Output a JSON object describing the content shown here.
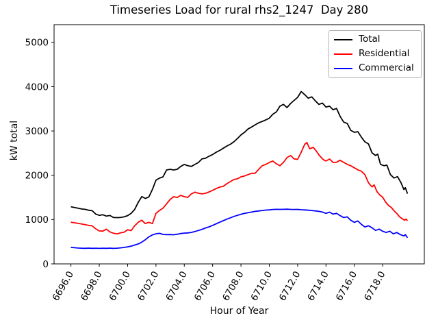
{
  "chart_data": {
    "type": "line",
    "title": "Timeseries Load for rural rhs2_1247  Day 280",
    "xlabel": "Hour of Year",
    "ylabel": "kW total",
    "xlim": [
      6694.81,
      6720.94
    ],
    "ylim": [
      0,
      5400
    ],
    "grid": false,
    "legend_position": "upper right",
    "x_tick_rotation_deg": 60,
    "xticks": [
      6696,
      6698,
      6700,
      6702,
      6704,
      6706,
      6708,
      6710,
      6712,
      6714,
      6716,
      6718
    ],
    "xtick_labels": [
      "6696.0",
      "6698.0",
      "6700.0",
      "6702.0",
      "6704.0",
      "6706.0",
      "6708.0",
      "6710.0",
      "6712.0",
      "6714.0",
      "6716.0",
      "6718.0"
    ],
    "yticks": [
      0,
      1000,
      2000,
      3000,
      4000,
      5000
    ],
    "ytick_labels": [
      "0",
      "1000",
      "2000",
      "3000",
      "4000",
      "5000"
    ],
    "series": [
      {
        "name": "Total",
        "color": "#000000",
        "points": [
          [
            6696.0,
            1290
          ],
          [
            6696.25,
            1272
          ],
          [
            6696.5,
            1258
          ],
          [
            6696.75,
            1240
          ],
          [
            6697.0,
            1232
          ],
          [
            6697.25,
            1212
          ],
          [
            6697.5,
            1200
          ],
          [
            6697.75,
            1125
          ],
          [
            6698.0,
            1095
          ],
          [
            6698.25,
            1110
          ],
          [
            6698.5,
            1078
          ],
          [
            6698.75,
            1092
          ],
          [
            6699.0,
            1048
          ],
          [
            6699.25,
            1045
          ],
          [
            6699.5,
            1048
          ],
          [
            6699.75,
            1062
          ],
          [
            6700.0,
            1090
          ],
          [
            6700.25,
            1140
          ],
          [
            6700.5,
            1230
          ],
          [
            6700.75,
            1390
          ],
          [
            6701.0,
            1520
          ],
          [
            6701.25,
            1477
          ],
          [
            6701.5,
            1510
          ],
          [
            6701.75,
            1680
          ],
          [
            6702.0,
            1890
          ],
          [
            6702.25,
            1935
          ],
          [
            6702.5,
            1965
          ],
          [
            6702.75,
            2120
          ],
          [
            6703.0,
            2136
          ],
          [
            6703.25,
            2120
          ],
          [
            6703.5,
            2136
          ],
          [
            6703.75,
            2200
          ],
          [
            6704.0,
            2245
          ],
          [
            6704.25,
            2215
          ],
          [
            6704.5,
            2200
          ],
          [
            6704.75,
            2245
          ],
          [
            6705.0,
            2290
          ],
          [
            6705.25,
            2370
          ],
          [
            6705.5,
            2385
          ],
          [
            6705.75,
            2430
          ],
          [
            6706.0,
            2470
          ],
          [
            6706.25,
            2520
          ],
          [
            6706.5,
            2560
          ],
          [
            6706.75,
            2610
          ],
          [
            6707.0,
            2660
          ],
          [
            6707.25,
            2700
          ],
          [
            6707.5,
            2755
          ],
          [
            6707.75,
            2830
          ],
          [
            6708.0,
            2910
          ],
          [
            6708.25,
            2970
          ],
          [
            6708.5,
            3045
          ],
          [
            6708.75,
            3090
          ],
          [
            6709.0,
            3140
          ],
          [
            6709.25,
            3185
          ],
          [
            6709.5,
            3215
          ],
          [
            6709.75,
            3250
          ],
          [
            6710.0,
            3290
          ],
          [
            6710.25,
            3380
          ],
          [
            6710.5,
            3430
          ],
          [
            6710.75,
            3560
          ],
          [
            6711.0,
            3600
          ],
          [
            6711.25,
            3530
          ],
          [
            6711.5,
            3620
          ],
          [
            6711.75,
            3690
          ],
          [
            6712.0,
            3760
          ],
          [
            6712.25,
            3890
          ],
          [
            6712.5,
            3820
          ],
          [
            6712.75,
            3740
          ],
          [
            6713.0,
            3770
          ],
          [
            6713.25,
            3680
          ],
          [
            6713.5,
            3600
          ],
          [
            6713.75,
            3630
          ],
          [
            6714.0,
            3540
          ],
          [
            6714.25,
            3560
          ],
          [
            6714.5,
            3480
          ],
          [
            6714.75,
            3510
          ],
          [
            6715.0,
            3330
          ],
          [
            6715.25,
            3200
          ],
          [
            6715.5,
            3170
          ],
          [
            6715.75,
            3015
          ],
          [
            6716.0,
            2970
          ],
          [
            6716.25,
            2985
          ],
          [
            6716.5,
            2860
          ],
          [
            6716.75,
            2755
          ],
          [
            6717.0,
            2707
          ],
          [
            6717.25,
            2507
          ],
          [
            6717.5,
            2446
          ],
          [
            6717.65,
            2477
          ],
          [
            6717.85,
            2246
          ],
          [
            6718.1,
            2215
          ],
          [
            6718.3,
            2230
          ],
          [
            6718.55,
            2015
          ],
          [
            6718.8,
            1938
          ],
          [
            6719.05,
            1969
          ],
          [
            6719.3,
            1831
          ],
          [
            6719.5,
            1677
          ],
          [
            6719.6,
            1720
          ],
          [
            6719.75,
            1585
          ]
        ]
      },
      {
        "name": "Residential",
        "color": "#ff0000",
        "points": [
          [
            6696.0,
            940
          ],
          [
            6696.25,
            928
          ],
          [
            6696.5,
            915
          ],
          [
            6696.75,
            900
          ],
          [
            6697.0,
            885
          ],
          [
            6697.25,
            870
          ],
          [
            6697.5,
            858
          ],
          [
            6697.75,
            790
          ],
          [
            6698.0,
            745
          ],
          [
            6698.25,
            740
          ],
          [
            6698.5,
            785
          ],
          [
            6698.75,
            723
          ],
          [
            6699.0,
            692
          ],
          [
            6699.25,
            677
          ],
          [
            6699.5,
            700
          ],
          [
            6699.75,
            715
          ],
          [
            6700.0,
            770
          ],
          [
            6700.25,
            750
          ],
          [
            6700.5,
            860
          ],
          [
            6700.75,
            940
          ],
          [
            6701.0,
            985
          ],
          [
            6701.25,
            910
          ],
          [
            6701.5,
            938
          ],
          [
            6701.75,
            910
          ],
          [
            6702.0,
            1140
          ],
          [
            6702.25,
            1205
          ],
          [
            6702.5,
            1260
          ],
          [
            6702.75,
            1355
          ],
          [
            6703.0,
            1455
          ],
          [
            6703.25,
            1517
          ],
          [
            6703.5,
            1500
          ],
          [
            6703.75,
            1548
          ],
          [
            6704.0,
            1517
          ],
          [
            6704.25,
            1502
          ],
          [
            6704.5,
            1580
          ],
          [
            6704.75,
            1620
          ],
          [
            6705.0,
            1594
          ],
          [
            6705.25,
            1580
          ],
          [
            6705.5,
            1594
          ],
          [
            6705.75,
            1625
          ],
          [
            6706.0,
            1660
          ],
          [
            6706.25,
            1700
          ],
          [
            6706.5,
            1733
          ],
          [
            6706.75,
            1750
          ],
          [
            6707.0,
            1811
          ],
          [
            6707.25,
            1857
          ],
          [
            6707.5,
            1904
          ],
          [
            6707.75,
            1920
          ],
          [
            6708.0,
            1965
          ],
          [
            6708.25,
            1985
          ],
          [
            6708.5,
            2015
          ],
          [
            6708.75,
            2045
          ],
          [
            6709.0,
            2045
          ],
          [
            6709.25,
            2135
          ],
          [
            6709.5,
            2215
          ],
          [
            6709.75,
            2245
          ],
          [
            6710.0,
            2290
          ],
          [
            6710.25,
            2322
          ],
          [
            6710.5,
            2260
          ],
          [
            6710.75,
            2215
          ],
          [
            6711.0,
            2290
          ],
          [
            6711.25,
            2400
          ],
          [
            6711.5,
            2446
          ],
          [
            6711.75,
            2370
          ],
          [
            6712.0,
            2360
          ],
          [
            6712.25,
            2520
          ],
          [
            6712.5,
            2700
          ],
          [
            6712.65,
            2740
          ],
          [
            6712.85,
            2600
          ],
          [
            6713.1,
            2630
          ],
          [
            6713.3,
            2555
          ],
          [
            6713.55,
            2440
          ],
          [
            6713.8,
            2355
          ],
          [
            6714.0,
            2322
          ],
          [
            6714.25,
            2368
          ],
          [
            6714.5,
            2290
          ],
          [
            6714.75,
            2295
          ],
          [
            6715.0,
            2340
          ],
          [
            6715.25,
            2292
          ],
          [
            6715.5,
            2246
          ],
          [
            6715.75,
            2215
          ],
          [
            6716.0,
            2169
          ],
          [
            6716.25,
            2123
          ],
          [
            6716.5,
            2092
          ],
          [
            6716.75,
            2015
          ],
          [
            6717.0,
            1831
          ],
          [
            6717.25,
            1738
          ],
          [
            6717.4,
            1784
          ],
          [
            6717.6,
            1631
          ],
          [
            6717.8,
            1554
          ],
          [
            6718.0,
            1507
          ],
          [
            6718.2,
            1400
          ],
          [
            6718.4,
            1323
          ],
          [
            6718.6,
            1277
          ],
          [
            6718.8,
            1200
          ],
          [
            6719.0,
            1138
          ],
          [
            6719.2,
            1062
          ],
          [
            6719.4,
            1015
          ],
          [
            6719.55,
            985
          ],
          [
            6719.65,
            1012
          ],
          [
            6719.75,
            975
          ]
        ]
      },
      {
        "name": "Commercial",
        "color": "#0000ff",
        "points": [
          [
            6696.0,
            375
          ],
          [
            6696.25,
            365
          ],
          [
            6696.5,
            358
          ],
          [
            6696.75,
            355
          ],
          [
            6697.0,
            352
          ],
          [
            6697.25,
            356
          ],
          [
            6697.5,
            352
          ],
          [
            6697.75,
            355
          ],
          [
            6698.0,
            350
          ],
          [
            6698.25,
            355
          ],
          [
            6698.5,
            352
          ],
          [
            6698.75,
            356
          ],
          [
            6699.0,
            350
          ],
          [
            6699.25,
            355
          ],
          [
            6699.5,
            362
          ],
          [
            6699.75,
            372
          ],
          [
            6700.0,
            385
          ],
          [
            6700.25,
            400
          ],
          [
            6700.5,
            425
          ],
          [
            6700.75,
            450
          ],
          [
            6701.0,
            490
          ],
          [
            6701.25,
            545
          ],
          [
            6701.5,
            610
          ],
          [
            6701.75,
            655
          ],
          [
            6702.0,
            680
          ],
          [
            6702.25,
            690
          ],
          [
            6702.5,
            665
          ],
          [
            6702.75,
            660
          ],
          [
            6703.0,
            662
          ],
          [
            6703.25,
            658
          ],
          [
            6703.5,
            670
          ],
          [
            6703.75,
            685
          ],
          [
            6704.0,
            695
          ],
          [
            6704.25,
            700
          ],
          [
            6704.5,
            710
          ],
          [
            6704.75,
            730
          ],
          [
            6705.0,
            755
          ],
          [
            6705.25,
            780
          ],
          [
            6705.5,
            810
          ],
          [
            6705.75,
            835
          ],
          [
            6706.0,
            870
          ],
          [
            6706.25,
            905
          ],
          [
            6706.5,
            940
          ],
          [
            6706.75,
            975
          ],
          [
            6707.0,
            1010
          ],
          [
            6707.25,
            1040
          ],
          [
            6707.5,
            1070
          ],
          [
            6707.75,
            1095
          ],
          [
            6708.0,
            1120
          ],
          [
            6708.25,
            1140
          ],
          [
            6708.5,
            1155
          ],
          [
            6708.75,
            1170
          ],
          [
            6709.0,
            1185
          ],
          [
            6709.25,
            1195
          ],
          [
            6709.5,
            1205
          ],
          [
            6709.75,
            1215
          ],
          [
            6710.0,
            1220
          ],
          [
            6710.25,
            1228
          ],
          [
            6710.5,
            1232
          ],
          [
            6710.75,
            1230
          ],
          [
            6711.0,
            1232
          ],
          [
            6711.25,
            1235
          ],
          [
            6711.5,
            1230
          ],
          [
            6711.75,
            1228
          ],
          [
            6712.0,
            1230
          ],
          [
            6712.25,
            1222
          ],
          [
            6712.5,
            1218
          ],
          [
            6712.75,
            1212
          ],
          [
            6713.0,
            1205
          ],
          [
            6713.25,
            1196
          ],
          [
            6713.5,
            1185
          ],
          [
            6713.75,
            1170
          ],
          [
            6714.0,
            1140
          ],
          [
            6714.25,
            1168
          ],
          [
            6714.5,
            1123
          ],
          [
            6714.75,
            1140
          ],
          [
            6715.0,
            1090
          ],
          [
            6715.25,
            1046
          ],
          [
            6715.5,
            1062
          ],
          [
            6715.75,
            985
          ],
          [
            6716.0,
            938
          ],
          [
            6716.25,
            968
          ],
          [
            6716.5,
            892
          ],
          [
            6716.75,
            832
          ],
          [
            6717.0,
            860
          ],
          [
            6717.25,
            815
          ],
          [
            6717.5,
            755
          ],
          [
            6717.75,
            785
          ],
          [
            6718.0,
            738
          ],
          [
            6718.25,
            708
          ],
          [
            6718.5,
            738
          ],
          [
            6718.75,
            678
          ],
          [
            6719.0,
            708
          ],
          [
            6719.25,
            660
          ],
          [
            6719.5,
            632
          ],
          [
            6719.6,
            660
          ],
          [
            6719.75,
            590
          ]
        ]
      }
    ]
  }
}
